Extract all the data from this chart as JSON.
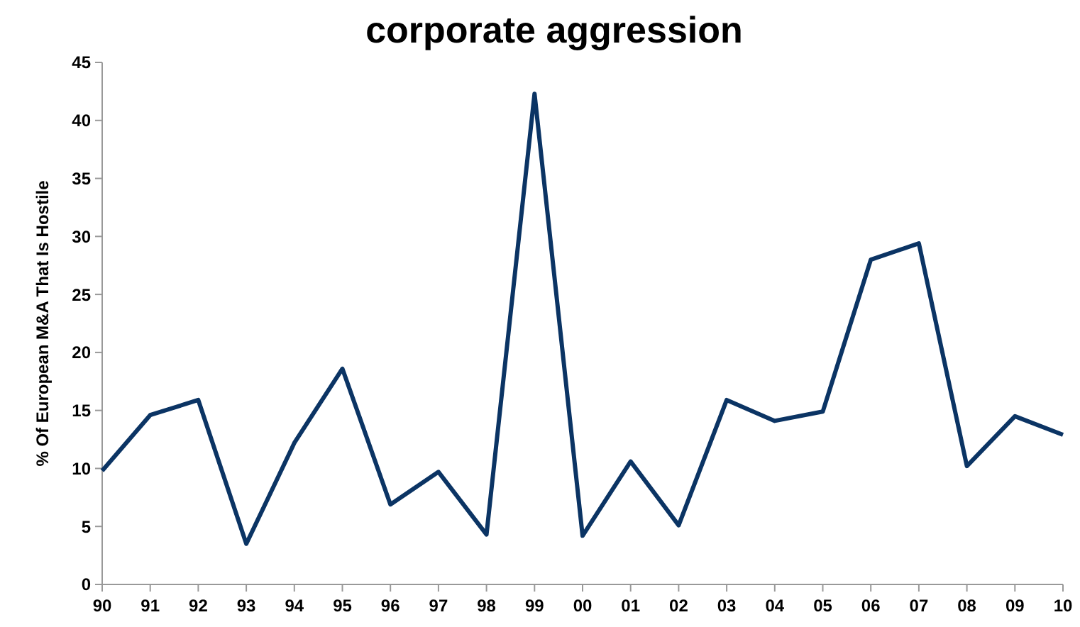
{
  "chart_data": {
    "type": "line",
    "title": "corporate aggression",
    "ylabel": "% Of European M&A That Is Hostile",
    "categories": [
      "90",
      "91",
      "92",
      "93",
      "94",
      "95",
      "96",
      "97",
      "98",
      "99",
      "00",
      "01",
      "02",
      "03",
      "04",
      "05",
      "06",
      "07",
      "08",
      "09",
      "10"
    ],
    "series": [
      {
        "color": "#0b3464",
        "values": [
          9.8,
          14.6,
          15.9,
          3.5,
          12.2,
          18.6,
          6.9,
          9.7,
          4.3,
          42.3,
          4.2,
          10.6,
          5.1,
          15.9,
          14.1,
          14.9,
          28.0,
          29.4,
          10.2,
          14.5,
          12.9
        ]
      }
    ],
    "ylim": [
      0,
      45
    ],
    "yticks": [
      0,
      5,
      10,
      15,
      20,
      25,
      30,
      35,
      40,
      45
    ],
    "grid": false,
    "marker": "none",
    "line_style": "solid"
  }
}
